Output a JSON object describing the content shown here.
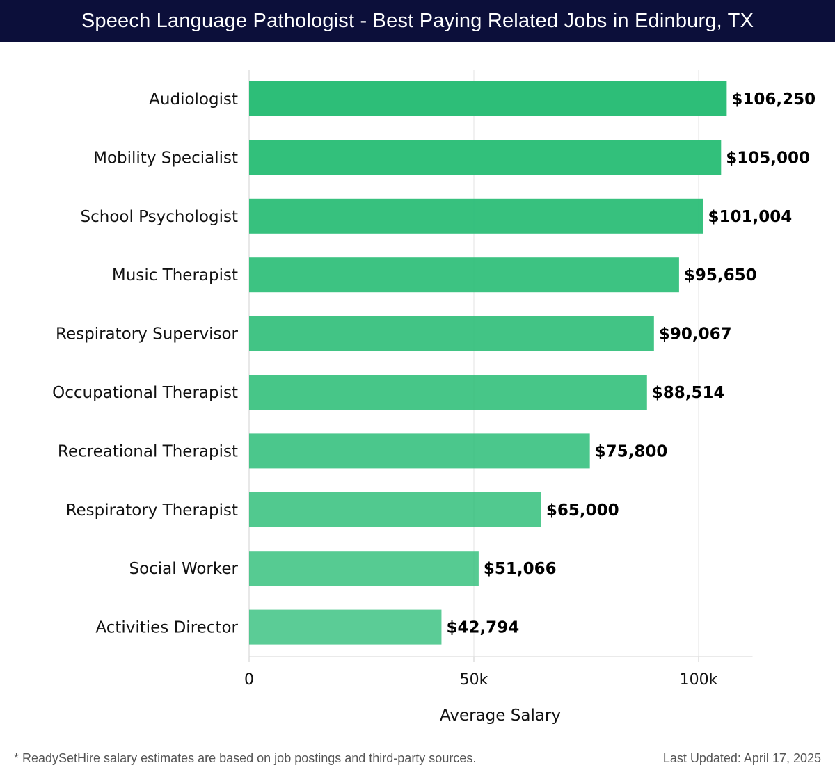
{
  "title": "Speech Language Pathologist - Best Paying Related Jobs in Edinburg, TX",
  "footer": {
    "note": "* ReadySetHire salary estimates are based on job postings and third-party sources.",
    "updated": "Last Updated: April 17, 2025"
  },
  "colors": {
    "bar": "#2dbe78",
    "title_bg": "#0c0f3a",
    "grid": "#e3e3e3"
  },
  "chart_data": {
    "type": "bar",
    "orientation": "horizontal",
    "categories": [
      "Audiologist",
      "Mobility Specialist",
      "School Psychologist",
      "Music Therapist",
      "Respiratory Supervisor",
      "Occupational Therapist",
      "Recreational Therapist",
      "Respiratory Therapist",
      "Social Worker",
      "Activities Director"
    ],
    "values": [
      106250,
      105000,
      101004,
      95650,
      90067,
      88514,
      75800,
      65000,
      51066,
      42794
    ],
    "value_labels": [
      "$106,250",
      "$105,000",
      "$101,004",
      "$95,650",
      "$90,067",
      "$88,514",
      "$75,800",
      "$65,000",
      "$51,066",
      "$42,794"
    ],
    "xlabel": "Average Salary",
    "ylabel": "",
    "xlim": [
      0,
      112000
    ],
    "xticks": [
      0,
      50000,
      100000
    ],
    "xtick_labels": [
      "0",
      "50k",
      "100k"
    ],
    "grid": true
  }
}
